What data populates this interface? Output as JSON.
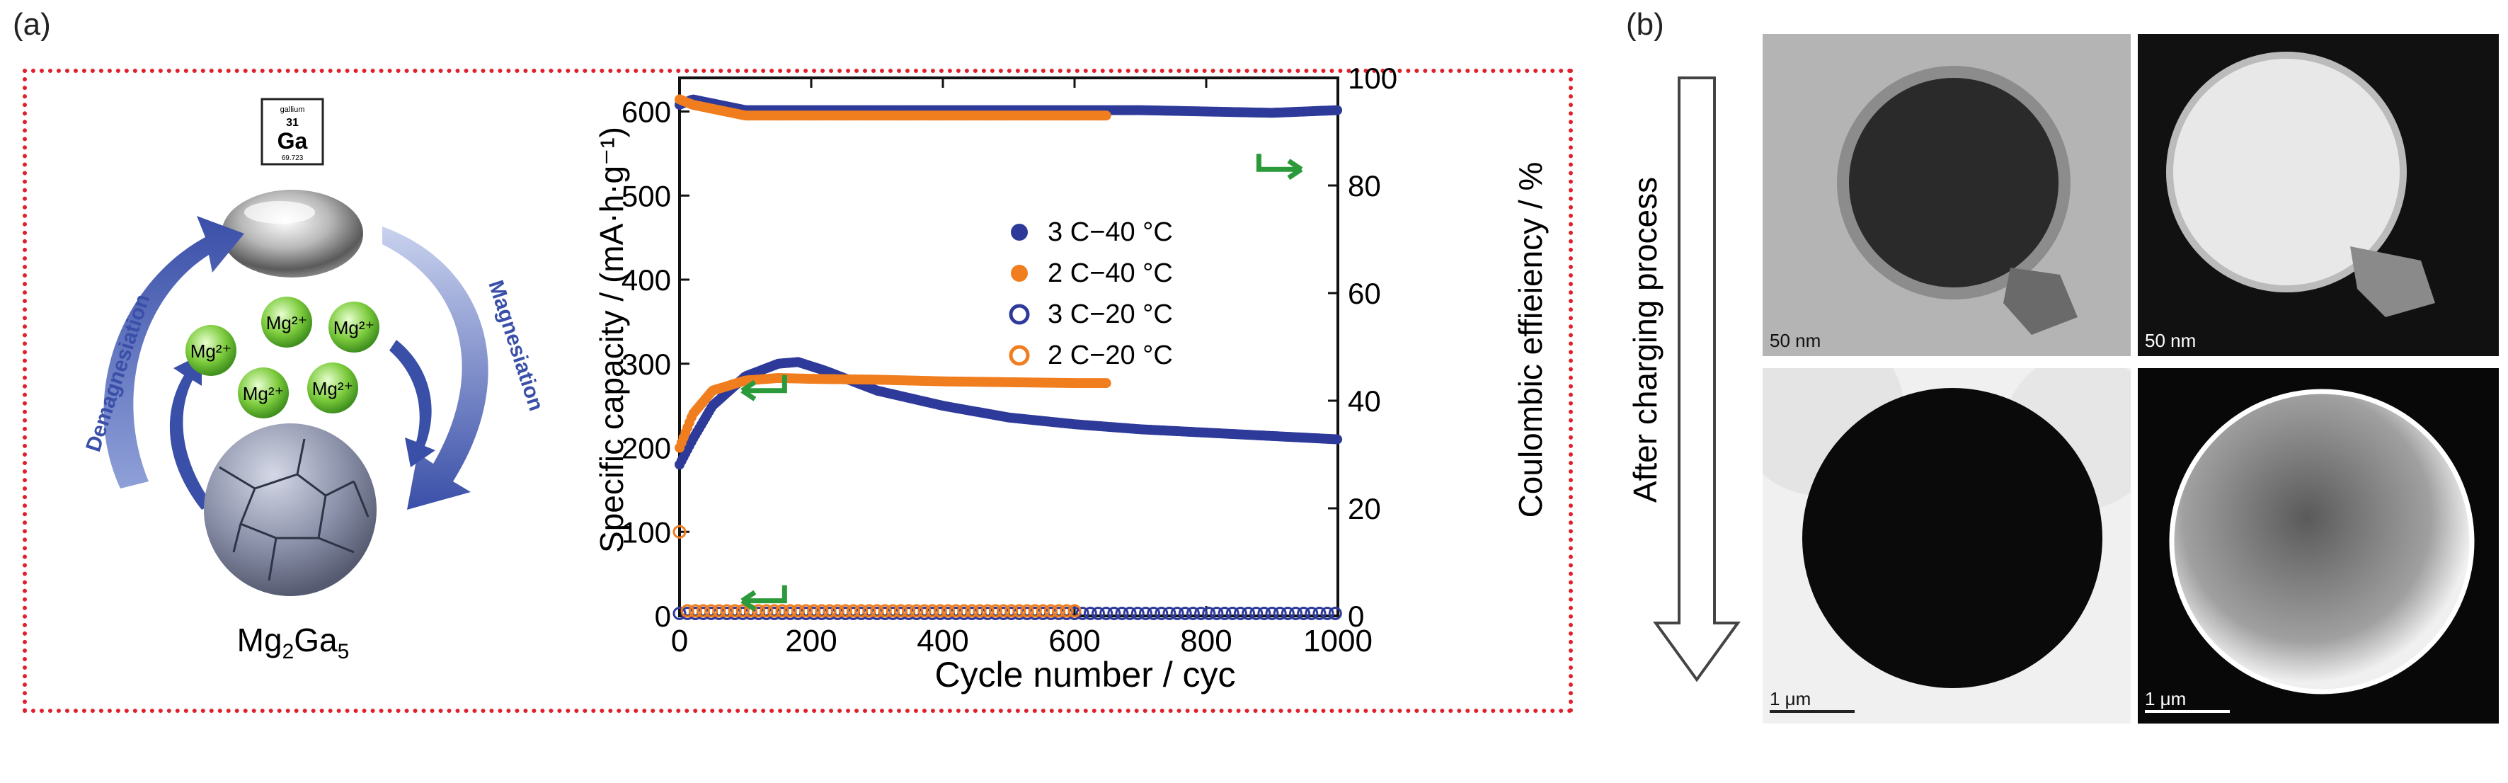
{
  "panel_a": {
    "label": "(a)",
    "element_card": {
      "name": "gallium",
      "number": "31",
      "symbol": "Ga",
      "mass": "69.723"
    },
    "ions": [
      "Mg²⁺",
      "Mg²⁺",
      "Mg²⁺",
      "Mg²⁺",
      "Mg²⁺"
    ],
    "left_arrow_text": "Demagnesiation",
    "right_arrow_text": "Magnesiation",
    "compound_main": "Mg",
    "compound_sub1": "2",
    "compound_mid": "Ga",
    "compound_sub2": "5"
  },
  "panel_b": {
    "label": "(b)",
    "arrow_text": "After charging process",
    "scale_bars": [
      "50 nm",
      "50 nm",
      "1 μm",
      "1 μm"
    ]
  },
  "chart_data": {
    "type": "scatter",
    "xlabel": "Cycle number / cyc",
    "ylabel_left": "Specific capacity / (mA·h·g⁻¹)",
    "ylabel_right": "Coulombic effieiency / %",
    "xlim": [
      0,
      1000
    ],
    "ylim_left": [
      0,
      640
    ],
    "ylim_right": [
      0,
      100
    ],
    "x_ticks": [
      0,
      200,
      400,
      600,
      800,
      1000
    ],
    "y_ticks_left": [
      0,
      100,
      200,
      300,
      400,
      500,
      600
    ],
    "y_ticks_right": [
      0,
      20,
      40,
      60,
      80,
      100
    ],
    "legend": [
      {
        "label": "3 C−40 °C",
        "color": "#2e3a9a",
        "marker": "filled"
      },
      {
        "label": "2 C−40 °C",
        "color": "#f07d1e",
        "marker": "filled"
      },
      {
        "label": "3 C−20 °C",
        "color": "#2e3a9a",
        "marker": "open"
      },
      {
        "label": "2 C−20 °C",
        "color": "#f07d1e",
        "marker": "open"
      }
    ],
    "series": [
      {
        "name": "3 C−40 °C",
        "axis": "left",
        "color": "#2e3a9a",
        "x": [
          0,
          20,
          50,
          100,
          150,
          180,
          220,
          300,
          400,
          500,
          600,
          700,
          800,
          900,
          1000
        ],
        "y": [
          180,
          210,
          250,
          285,
          300,
          302,
          292,
          268,
          250,
          236,
          228,
          222,
          218,
          214,
          210
        ]
      },
      {
        "name": "2 C−40 °C",
        "axis": "left",
        "color": "#f07d1e",
        "x": [
          0,
          20,
          50,
          100,
          150,
          200,
          300,
          400,
          500,
          600,
          650
        ],
        "y": [
          200,
          240,
          268,
          280,
          283,
          282,
          281,
          279,
          278,
          277,
          277
        ]
      },
      {
        "name": "3 C−40 °C CE",
        "axis": "right",
        "color": "#2e3a9a",
        "x": [
          0,
          20,
          100,
          300,
          500,
          700,
          900,
          1000
        ],
        "y": [
          95,
          96,
          94,
          94,
          94,
          94,
          93.5,
          94
        ]
      },
      {
        "name": "2 C−40 °C CE",
        "axis": "right",
        "color": "#f07d1e",
        "x": [
          0,
          20,
          100,
          300,
          500,
          650
        ],
        "y": [
          96,
          95,
          93,
          93,
          93,
          93
        ]
      },
      {
        "name": "3 C−20 °C",
        "axis": "left",
        "color": "#2e3a9a",
        "x": [
          0,
          200,
          400,
          600,
          800,
          1000
        ],
        "y": [
          3,
          3,
          3,
          3,
          3,
          3
        ]
      },
      {
        "name": "2 C−20 °C",
        "axis": "left",
        "color": "#f07d1e",
        "x": [
          0,
          10,
          200,
          400,
          600
        ],
        "y": [
          100,
          6,
          6,
          6,
          6
        ]
      }
    ]
  }
}
